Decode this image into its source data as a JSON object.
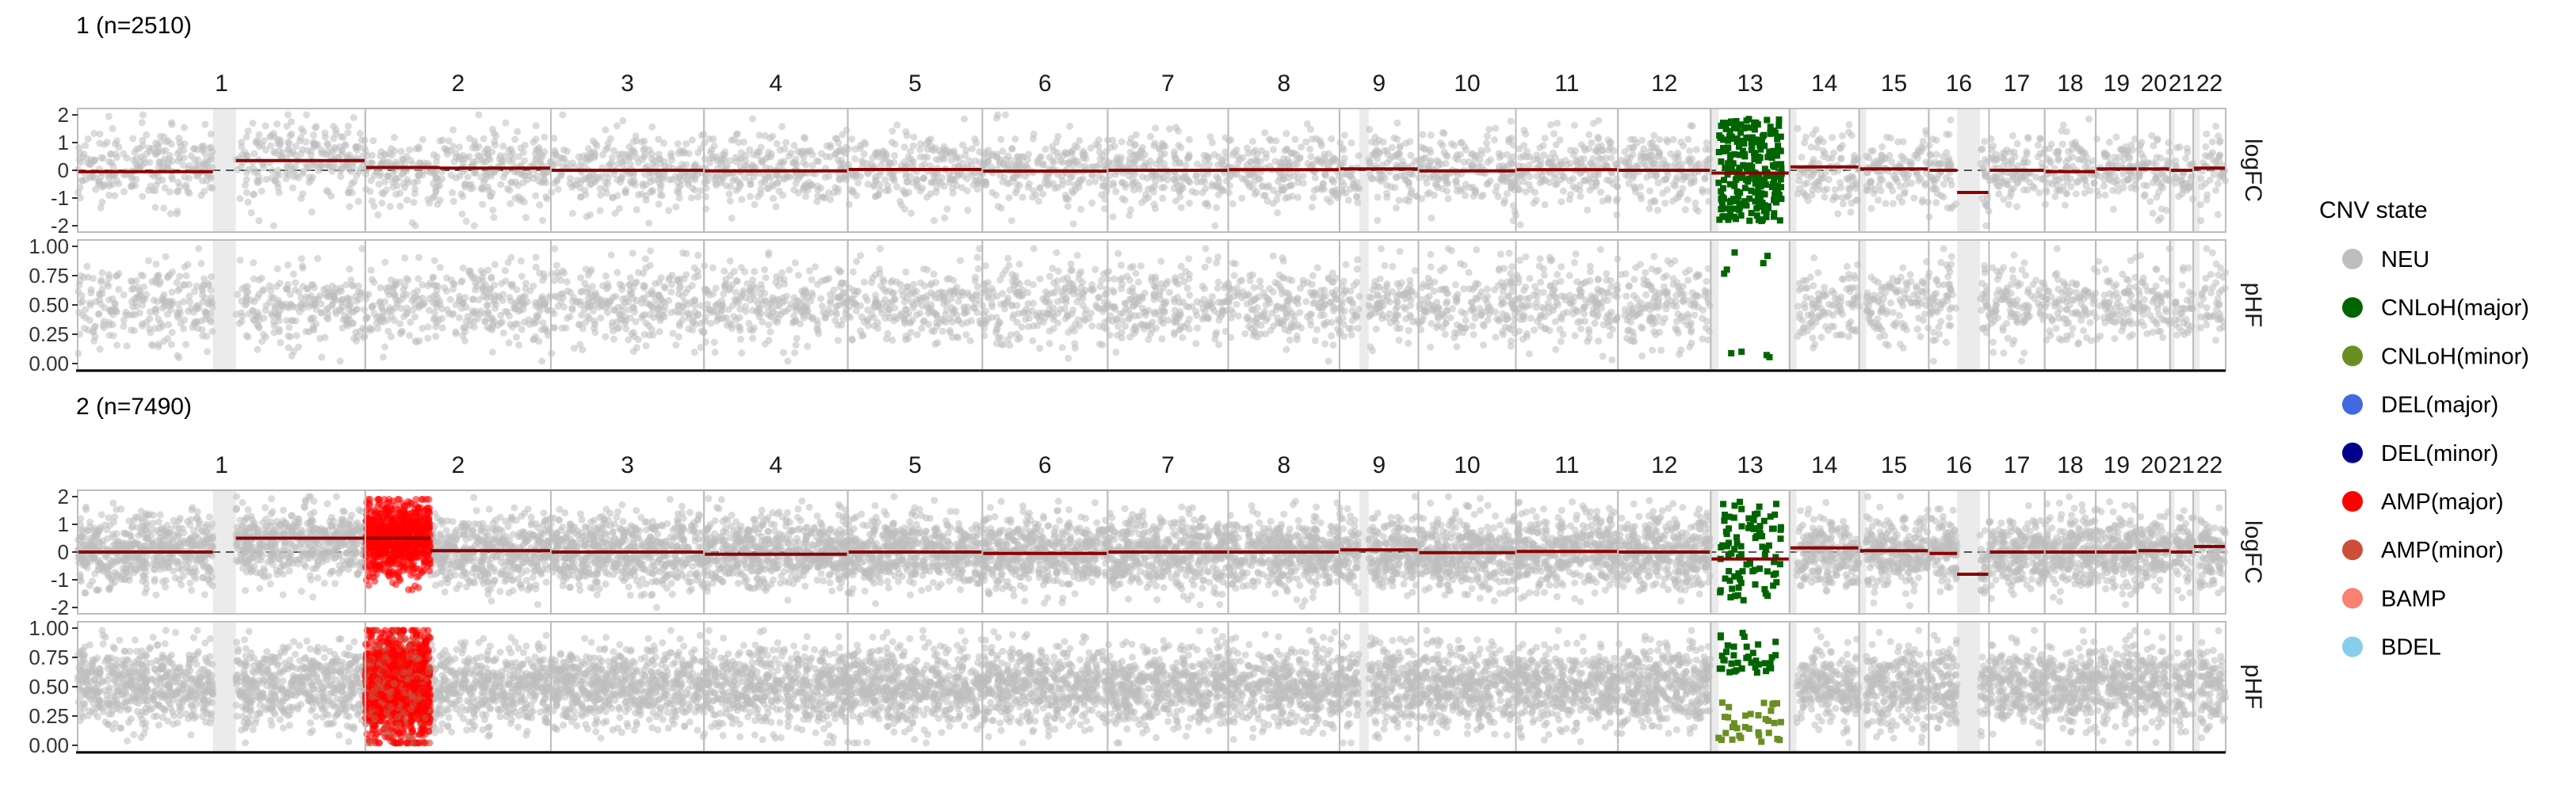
{
  "chart_data": {
    "type": "scatter",
    "chromosomes": [
      "1",
      "2",
      "3",
      "4",
      "5",
      "6",
      "7",
      "8",
      "9",
      "10",
      "11",
      "12",
      "13",
      "14",
      "15",
      "16",
      "17",
      "18",
      "19",
      "20",
      "21",
      "22"
    ],
    "chrom_widths": [
      62,
      40,
      33,
      31,
      29,
      27,
      26,
      24,
      17,
      21,
      22,
      20,
      17,
      15,
      15,
      13,
      12,
      11,
      9,
      7,
      5,
      7
    ],
    "gaps": [
      {
        "chrom": "1",
        "start": 0.47,
        "end": 0.55
      },
      {
        "chrom": "9",
        "start": 0.25,
        "end": 0.37
      },
      {
        "chrom": "13",
        "start": 0.0,
        "end": 0.1
      },
      {
        "chrom": "14",
        "start": 0.0,
        "end": 0.1
      },
      {
        "chrom": "15",
        "start": 0.0,
        "end": 0.1
      },
      {
        "chrom": "16",
        "start": 0.47,
        "end": 0.85
      },
      {
        "chrom": "21",
        "start": 0.0,
        "end": 0.2
      },
      {
        "chrom": "22",
        "start": 0.0,
        "end": 0.2
      }
    ],
    "panel_labels": [
      "logFC",
      "pHF"
    ],
    "logfc_ylim": [
      -2,
      2
    ],
    "logfc_yticks": [
      "2",
      "1",
      "0",
      "-1",
      "-2"
    ],
    "phf_ylim": [
      0,
      1
    ],
    "phf_yticks": [
      "1.00",
      "0.75",
      "0.50",
      "0.25",
      "0.00"
    ],
    "facets": [
      {
        "title": "1 (n=2510)",
        "density": 0.45,
        "regions": [
          {
            "chrom": "13",
            "start": 0.0,
            "end": 1.0,
            "state": "CNLoH(major)",
            "logfc_scatter": 2.2,
            "phf_mode": "major"
          }
        ],
        "segments": [
          {
            "chrom": "1",
            "start": 0.0,
            "end": 0.47,
            "value": -0.05
          },
          {
            "chrom": "1",
            "start": 0.55,
            "end": 1.0,
            "value": 0.35
          },
          {
            "chrom": "2",
            "start": 0.0,
            "end": 0.4,
            "value": 0.1
          },
          {
            "chrom": "2",
            "start": 0.4,
            "end": 1.0,
            "value": 0.08
          },
          {
            "chrom": "3",
            "start": 0.0,
            "end": 1.0,
            "value": 0.0
          },
          {
            "chrom": "4",
            "start": 0.0,
            "end": 1.0,
            "value": -0.02
          },
          {
            "chrom": "5",
            "start": 0.0,
            "end": 1.0,
            "value": 0.03
          },
          {
            "chrom": "6",
            "start": 0.0,
            "end": 1.0,
            "value": -0.03
          },
          {
            "chrom": "7",
            "start": 0.0,
            "end": 1.0,
            "value": 0.0
          },
          {
            "chrom": "8",
            "start": 0.0,
            "end": 1.0,
            "value": 0.02
          },
          {
            "chrom": "9",
            "start": 0.0,
            "end": 1.0,
            "value": 0.05
          },
          {
            "chrom": "10",
            "start": 0.0,
            "end": 1.0,
            "value": -0.02
          },
          {
            "chrom": "11",
            "start": 0.0,
            "end": 1.0,
            "value": 0.02
          },
          {
            "chrom": "12",
            "start": 0.0,
            "end": 1.0,
            "value": 0.0
          },
          {
            "chrom": "13",
            "start": 0.0,
            "end": 1.0,
            "value": -0.1
          },
          {
            "chrom": "14",
            "start": 0.0,
            "end": 1.0,
            "value": 0.12
          },
          {
            "chrom": "15",
            "start": 0.0,
            "end": 1.0,
            "value": 0.05
          },
          {
            "chrom": "16",
            "start": 0.0,
            "end": 0.47,
            "value": 0.0
          },
          {
            "chrom": "16",
            "start": 0.47,
            "end": 1.0,
            "value": -0.8
          },
          {
            "chrom": "17",
            "start": 0.0,
            "end": 1.0,
            "value": 0.0
          },
          {
            "chrom": "18",
            "start": 0.0,
            "end": 1.0,
            "value": -0.05
          },
          {
            "chrom": "19",
            "start": 0.0,
            "end": 1.0,
            "value": 0.05
          },
          {
            "chrom": "20",
            "start": 0.0,
            "end": 1.0,
            "value": 0.05
          },
          {
            "chrom": "21",
            "start": 0.0,
            "end": 1.0,
            "value": 0.0
          },
          {
            "chrom": "22",
            "start": 0.0,
            "end": 1.0,
            "value": 0.08
          }
        ]
      },
      {
        "title": "2 (n=7490)",
        "density": 1.0,
        "regions": [
          {
            "chrom": "2",
            "start": 0.0,
            "end": 0.35,
            "state": "AMP(major)",
            "logfc_shift": 0.5,
            "phf_mode": "amp"
          },
          {
            "chrom": "13",
            "start": 0.0,
            "end": 1.0,
            "state": "CNLoH(major)",
            "logfc_scatter": 1.5,
            "phf_mode": "loh_split"
          }
        ],
        "segments": [
          {
            "chrom": "1",
            "start": 0.0,
            "end": 0.47,
            "value": 0.0
          },
          {
            "chrom": "1",
            "start": 0.55,
            "end": 1.0,
            "value": 0.5
          },
          {
            "chrom": "2",
            "start": 0.0,
            "end": 0.35,
            "value": 0.5
          },
          {
            "chrom": "2",
            "start": 0.35,
            "end": 1.0,
            "value": 0.05
          },
          {
            "chrom": "3",
            "start": 0.0,
            "end": 1.0,
            "value": 0.0
          },
          {
            "chrom": "4",
            "start": 0.0,
            "end": 1.0,
            "value": -0.08
          },
          {
            "chrom": "5",
            "start": 0.0,
            "end": 1.0,
            "value": 0.0
          },
          {
            "chrom": "6",
            "start": 0.0,
            "end": 1.0,
            "value": -0.05
          },
          {
            "chrom": "7",
            "start": 0.0,
            "end": 1.0,
            "value": 0.0
          },
          {
            "chrom": "8",
            "start": 0.0,
            "end": 1.0,
            "value": 0.0
          },
          {
            "chrom": "9",
            "start": 0.0,
            "end": 1.0,
            "value": 0.08
          },
          {
            "chrom": "10",
            "start": 0.0,
            "end": 1.0,
            "value": -0.02
          },
          {
            "chrom": "11",
            "start": 0.0,
            "end": 1.0,
            "value": 0.02
          },
          {
            "chrom": "12",
            "start": 0.0,
            "end": 1.0,
            "value": 0.0
          },
          {
            "chrom": "13",
            "start": 0.0,
            "end": 1.0,
            "value": -0.25
          },
          {
            "chrom": "14",
            "start": 0.0,
            "end": 1.0,
            "value": 0.15
          },
          {
            "chrom": "15",
            "start": 0.0,
            "end": 1.0,
            "value": 0.05
          },
          {
            "chrom": "16",
            "start": 0.0,
            "end": 0.47,
            "value": -0.05
          },
          {
            "chrom": "16",
            "start": 0.47,
            "end": 1.0,
            "value": -0.8
          },
          {
            "chrom": "17",
            "start": 0.0,
            "end": 1.0,
            "value": 0.0
          },
          {
            "chrom": "18",
            "start": 0.0,
            "end": 1.0,
            "value": 0.0
          },
          {
            "chrom": "19",
            "start": 0.0,
            "end": 1.0,
            "value": 0.0
          },
          {
            "chrom": "20",
            "start": 0.0,
            "end": 1.0,
            "value": 0.05
          },
          {
            "chrom": "21",
            "start": 0.0,
            "end": 1.0,
            "value": 0.0
          },
          {
            "chrom": "22",
            "start": 0.0,
            "end": 1.0,
            "value": 0.2
          }
        ]
      }
    ],
    "legend": {
      "title": "CNV state",
      "entries": [
        {
          "label": "NEU",
          "color": "#BEBEBE"
        },
        {
          "label": "CNLoH(major)",
          "color": "#006400"
        },
        {
          "label": "CNLoH(minor)",
          "color": "#6B8E23"
        },
        {
          "label": "DEL(major)",
          "color": "#4169E1"
        },
        {
          "label": "DEL(minor)",
          "color": "#00008B"
        },
        {
          "label": "AMP(major)",
          "color": "#FF0000"
        },
        {
          "label": "AMP(minor)",
          "color": "#CD4F39"
        },
        {
          "label": "BAMP",
          "color": "#FA8072"
        },
        {
          "label": "BDEL",
          "color": "#87CEEB"
        }
      ]
    },
    "colors": {
      "segment": "#8B0000",
      "strip_bg": "#EBEBEB",
      "panel_border": "#BDBDBD",
      "zero_line": "#555555"
    }
  }
}
